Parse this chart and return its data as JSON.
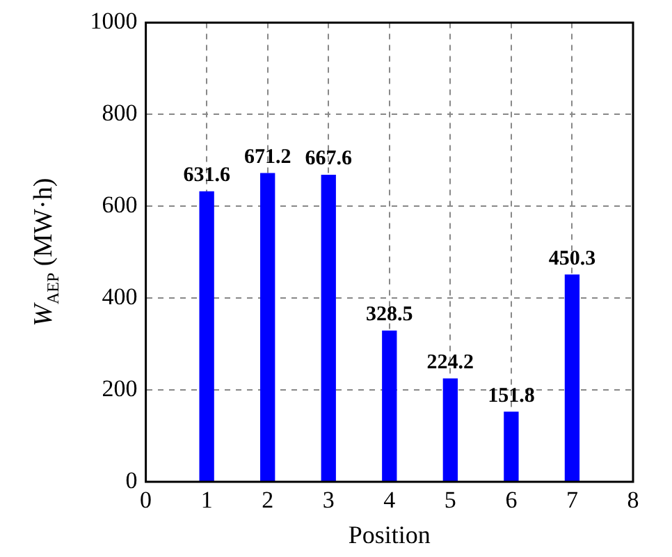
{
  "chart_data": {
    "type": "bar",
    "xlabel": "Position",
    "ylabel": "W$_{AEP}$ (MW·h)",
    "x": [
      1,
      2,
      3,
      4,
      5,
      6,
      7
    ],
    "values": [
      631.6,
      671.2,
      667.6,
      328.5,
      224.2,
      151.8,
      450.3
    ],
    "color": "#0000ff",
    "xlim": [
      0,
      8
    ],
    "xticks": [
      0,
      1,
      2,
      3,
      4,
      5,
      6,
      7,
      8
    ],
    "ylim": [
      0,
      1000
    ],
    "yticks": [
      0,
      200,
      400,
      600,
      800,
      1000
    ],
    "grid": true,
    "data_labels": true
  }
}
